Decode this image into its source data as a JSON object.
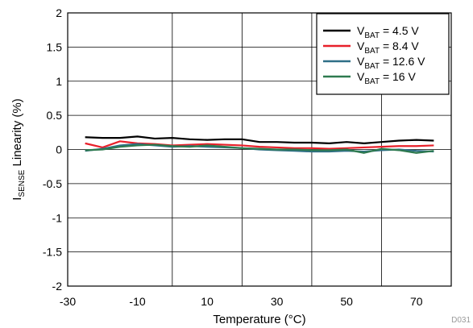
{
  "chart_data": {
    "type": "line",
    "title": "",
    "xlabel": "Temperature (°C)",
    "ylabel": {
      "pre": "I",
      "sub": "SENSE",
      "post": " Linearity (%)"
    },
    "xlim": [
      -30,
      80
    ],
    "ylim": [
      -2,
      2
    ],
    "xticks": [
      -30,
      -10,
      10,
      30,
      50,
      70
    ],
    "yticks": [
      -2,
      -1.5,
      -1,
      -0.5,
      0,
      0.5,
      1,
      1.5,
      2
    ],
    "grid": true,
    "legend_position": "top-right",
    "x": [
      -25,
      -20,
      -15,
      -10,
      -5,
      0,
      5,
      10,
      15,
      20,
      25,
      30,
      35,
      40,
      45,
      50,
      55,
      60,
      65,
      70,
      75
    ],
    "series": [
      {
        "name": {
          "pre": "V",
          "sub": "BAT",
          "post": " = 4.5 V"
        },
        "color": "#000000",
        "values": [
          0.18,
          0.17,
          0.17,
          0.19,
          0.16,
          0.17,
          0.15,
          0.14,
          0.15,
          0.15,
          0.11,
          0.11,
          0.1,
          0.1,
          0.09,
          0.11,
          0.09,
          0.11,
          0.13,
          0.14,
          0.13
        ]
      },
      {
        "name": {
          "pre": "V",
          "sub": "BAT",
          "post": " = 8.4 V"
        },
        "color": "#e8202a",
        "values": [
          0.09,
          0.03,
          0.12,
          0.09,
          0.08,
          0.06,
          0.07,
          0.08,
          0.07,
          0.06,
          0.04,
          0.03,
          0.02,
          0.02,
          0.01,
          0.02,
          0.03,
          0.04,
          0.05,
          0.05,
          0.06
        ]
      },
      {
        "name": {
          "pre": "V",
          "sub": "BAT",
          "post": " = 12.6 V"
        },
        "color": "#2f6f87",
        "values": [
          -0.02,
          0.01,
          0.06,
          0.08,
          0.06,
          0.04,
          0.05,
          0.04,
          0.03,
          0.02,
          0.0,
          -0.01,
          -0.02,
          -0.03,
          -0.03,
          -0.02,
          -0.03,
          -0.01,
          0.0,
          -0.02,
          -0.03
        ]
      },
      {
        "name": {
          "pre": "V",
          "sub": "BAT",
          "post": " = 16 V"
        },
        "color": "#2e7a4f",
        "values": [
          -0.01,
          0.0,
          0.04,
          0.06,
          0.07,
          0.05,
          0.04,
          0.06,
          0.04,
          0.02,
          0.01,
          0.0,
          0.0,
          -0.01,
          -0.01,
          0.0,
          -0.05,
          0.01,
          -0.01,
          -0.05,
          -0.02
        ]
      }
    ],
    "figure_id": "D031"
  }
}
